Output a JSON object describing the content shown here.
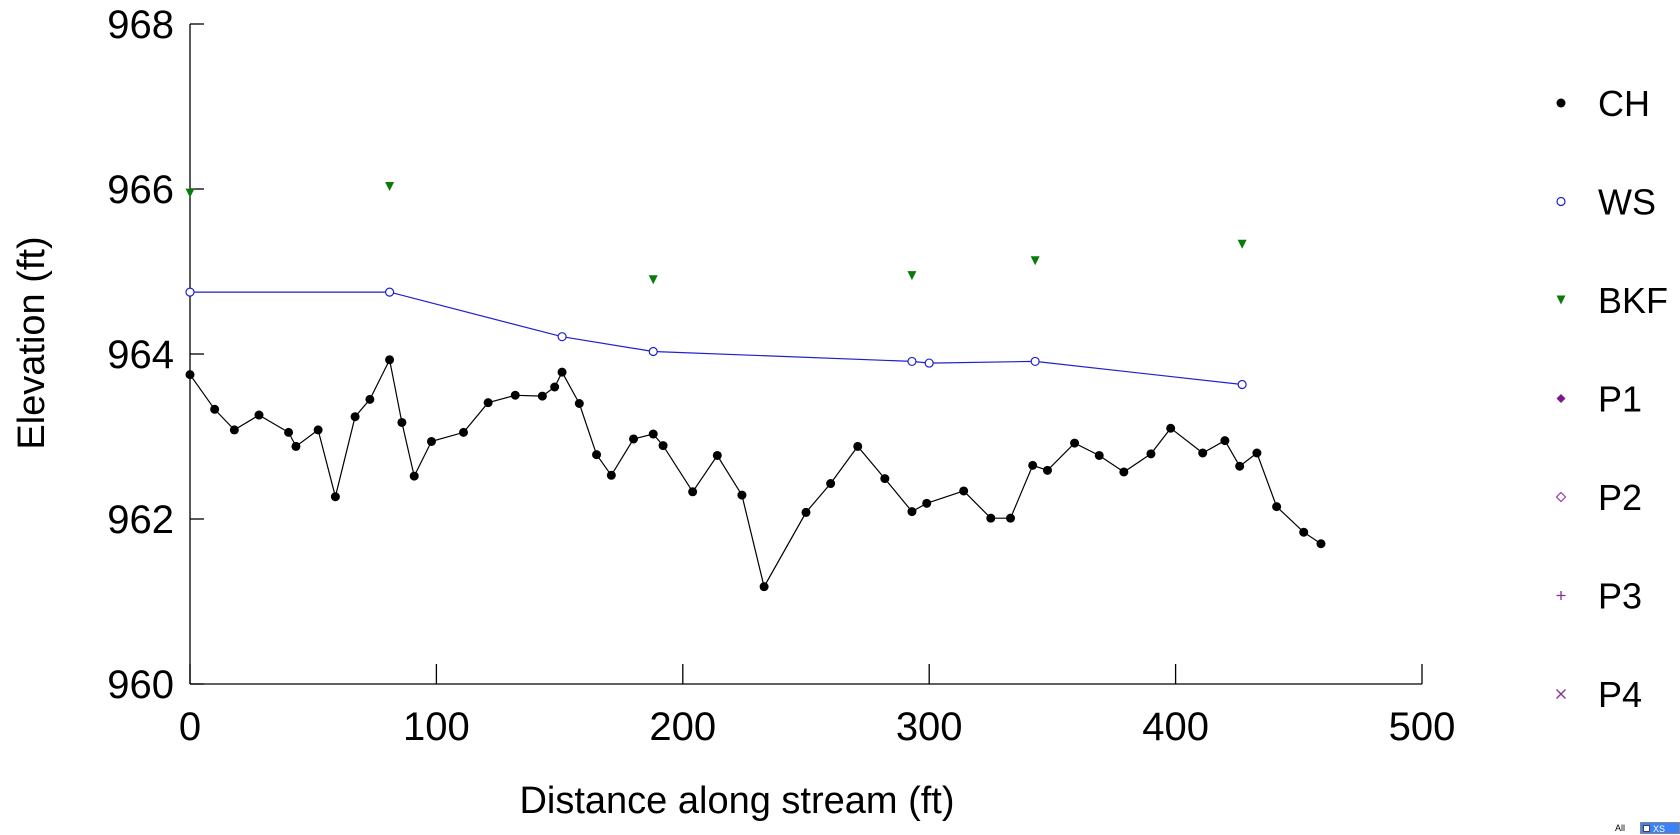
{
  "chart_data": {
    "type": "line",
    "xlabel": "Distance along stream (ft)",
    "ylabel": "Elevation (ft)",
    "xlim": [
      0,
      500
    ],
    "ylim": [
      960,
      968
    ],
    "xticks": [
      0,
      100,
      200,
      300,
      400,
      500
    ],
    "yticks": [
      960,
      962,
      964,
      966,
      968
    ],
    "grid": false,
    "legend_position": "right",
    "series": [
      {
        "name": "CH",
        "color": "#000000",
        "marker": "filled-circle",
        "line": true,
        "points": [
          [
            0,
            963.75
          ],
          [
            10,
            963.33
          ],
          [
            18,
            963.08
          ],
          [
            28,
            963.26
          ],
          [
            40,
            963.05
          ],
          [
            43,
            962.88
          ],
          [
            52,
            963.08
          ],
          [
            59,
            962.27
          ],
          [
            67,
            963.24
          ],
          [
            73,
            963.45
          ],
          [
            81,
            963.93
          ],
          [
            86,
            963.17
          ],
          [
            91,
            962.52
          ],
          [
            98,
            962.94
          ],
          [
            111,
            963.05
          ],
          [
            121,
            963.41
          ],
          [
            132,
            963.5
          ],
          [
            143,
            963.49
          ],
          [
            148,
            963.6
          ],
          [
            151,
            963.78
          ],
          [
            158,
            963.4
          ],
          [
            165,
            962.78
          ],
          [
            171,
            962.53
          ],
          [
            180,
            962.97
          ],
          [
            188,
            963.03
          ],
          [
            192,
            962.89
          ],
          [
            204,
            962.33
          ],
          [
            214,
            962.77
          ],
          [
            224,
            962.29
          ],
          [
            233,
            961.18
          ],
          [
            250,
            962.08
          ],
          [
            260,
            962.43
          ],
          [
            271,
            962.88
          ],
          [
            282,
            962.49
          ],
          [
            293,
            962.09
          ],
          [
            299,
            962.19
          ],
          [
            314,
            962.34
          ],
          [
            325,
            962.01
          ],
          [
            333,
            962.01
          ],
          [
            342,
            962.65
          ],
          [
            348,
            962.59
          ],
          [
            359,
            962.92
          ],
          [
            369,
            962.77
          ],
          [
            379,
            962.57
          ],
          [
            390,
            962.79
          ],
          [
            398,
            963.1
          ],
          [
            411,
            962.8
          ],
          [
            420,
            962.95
          ],
          [
            426,
            962.64
          ],
          [
            433,
            962.8
          ],
          [
            441,
            962.15
          ],
          [
            452,
            961.84
          ],
          [
            459,
            961.7
          ]
        ]
      },
      {
        "name": "WS",
        "color": "#1f1fcf",
        "marker": "open-circle",
        "line": true,
        "points": [
          [
            0,
            964.75
          ],
          [
            81,
            964.75
          ],
          [
            151,
            964.21
          ],
          [
            188,
            964.03
          ],
          [
            293,
            963.91
          ],
          [
            300,
            963.89
          ],
          [
            343,
            963.91
          ],
          [
            427,
            963.63
          ]
        ]
      },
      {
        "name": "BKF",
        "color": "#0a7a0a",
        "marker": "filled-triangle-down",
        "line": false,
        "points": [
          [
            0,
            965.95
          ],
          [
            81,
            966.03
          ],
          [
            188,
            964.9
          ],
          [
            293,
            964.95
          ],
          [
            343,
            965.13
          ],
          [
            427,
            965.33
          ]
        ]
      },
      {
        "name": "P1",
        "color": "#7a1a8a",
        "marker": "filled-diamond",
        "line": false,
        "points": []
      },
      {
        "name": "P2",
        "color": "#9a3aaa",
        "marker": "open-diamond",
        "line": false,
        "points": []
      },
      {
        "name": "P3",
        "color": "#8a2a9a",
        "marker": "plus",
        "line": false,
        "points": []
      },
      {
        "name": "P4",
        "color": "#8a2a9a",
        "marker": "cross",
        "line": false,
        "points": []
      }
    ]
  },
  "controls": {
    "all_label": "All",
    "xs_label": "XS"
  }
}
